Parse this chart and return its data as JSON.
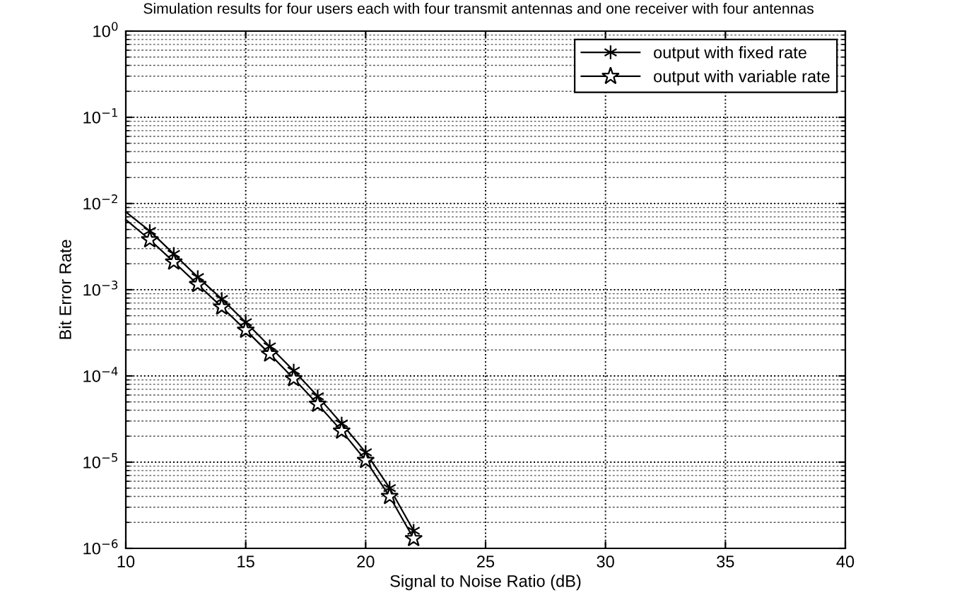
{
  "chart_data": {
    "type": "line",
    "title": "Simulation results for four users each with four transmit antennas and one receiver with four antennas",
    "xlabel": "Signal to Noise Ratio (dB)",
    "ylabel": "Bit Error Rate",
    "x": [
      10,
      11,
      12,
      13,
      14,
      15,
      16,
      17,
      18,
      19,
      20,
      21,
      22
    ],
    "series": [
      {
        "name": "output with fixed rate",
        "color": "#000000",
        "marker": "cross",
        "values": [
          0.008,
          0.0048,
          0.0026,
          0.0014,
          0.00078,
          0.00042,
          0.00022,
          0.000115,
          5.8e-05,
          2.8e-05,
          1.3e-05,
          5e-06,
          1.6e-06
        ]
      },
      {
        "name": "output with variable rate",
        "color": "#000000",
        "marker": "star",
        "values": [
          0.0065,
          0.0038,
          0.0021,
          0.00115,
          0.00063,
          0.00034,
          0.00018,
          9.3e-05,
          4.7e-05,
          2.3e-05,
          1.05e-05,
          4e-06,
          1.3e-06
        ]
      }
    ],
    "log": "y",
    "xlim": [
      10,
      40
    ],
    "ylim": [
      1e-06,
      1
    ],
    "xticks": [
      10,
      15,
      20,
      25,
      30,
      35,
      40
    ],
    "yticks": [
      {
        "value": 1e-06,
        "label": "10$^{−6}$"
      },
      {
        "value": 1e-05,
        "label": "10$^{−5}$"
      },
      {
        "value": 0.0001,
        "label": "10$^{−4}$"
      },
      {
        "value": 0.001,
        "label": "10$^{−3}$"
      },
      {
        "value": 0.01,
        "label": "10$^{−2}$"
      },
      {
        "value": 0.1,
        "label": "10$^{−1}$"
      },
      {
        "value": 1,
        "label": "10$^{0}$"
      }
    ],
    "grid": true,
    "legend": "top right",
    "line_style": "solid"
  }
}
